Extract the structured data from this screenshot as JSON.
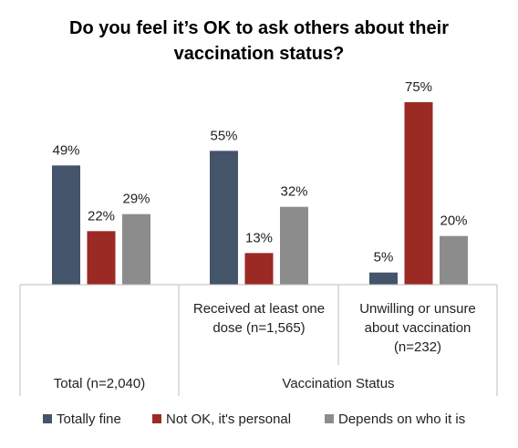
{
  "chart_data": {
    "type": "bar",
    "title_lines": [
      "Do you feel it’s OK to ask others about their",
      "vaccination status?"
    ],
    "categories": [
      {
        "label_lines": [],
        "group_label": "Total (n=2,040)"
      },
      {
        "label_lines": [
          "Received at least one",
          "dose (n=1,565)"
        ],
        "group_label": "Vaccination Status"
      },
      {
        "label_lines": [
          "Unwilling or unsure",
          "about vaccination",
          "(n=232)"
        ],
        "group_label": "Vaccination Status"
      }
    ],
    "group_labels": [
      "Total (n=2,040)",
      "Vaccination Status"
    ],
    "series": [
      {
        "name": "Totally fine",
        "color": "#44546a",
        "values": [
          49,
          55,
          5
        ]
      },
      {
        "name": "Not OK, it's personal",
        "color": "#9b2a25",
        "values": [
          22,
          13,
          75
        ]
      },
      {
        "name": "Depends on who it is",
        "color": "#8c8c8c",
        "values": [
          29,
          32,
          20
        ]
      }
    ],
    "value_suffix": "%",
    "ylim": [
      0,
      75
    ],
    "grid": false,
    "legend_position": "bottom"
  }
}
